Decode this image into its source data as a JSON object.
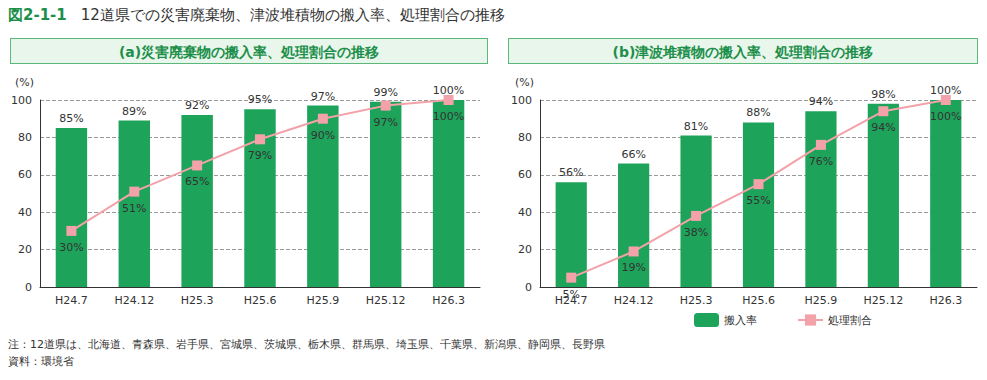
{
  "figure_number": "図2-1-1",
  "title": "12道県での災害廃棄物、津波堆積物の搬入率、処理割合の推移",
  "notes": [
    "注：12道県は、北海道、青森県、岩手県、宮城県、茨城県、栃木県、群馬県、埼玉県、千葉県、新潟県、静岡県、長野県",
    "資料：環境省"
  ],
  "chart_data": [
    {
      "type": "bar",
      "title": "(a)災害廃棄物の搬入率、処理割合の推移",
      "y_label": "(%)",
      "categories": [
        "H24.7",
        "H24.12",
        "H25.3",
        "H25.6",
        "H25.9",
        "H25.12",
        "H26.3"
      ],
      "series": [
        {
          "name": "搬入率",
          "type": "bar",
          "color": "#1ea35a",
          "values": [
            85,
            89,
            92,
            95,
            97,
            99,
            100
          ],
          "value_labels": [
            "85%",
            "89%",
            "92%",
            "95%",
            "97%",
            "99%",
            "100%"
          ]
        },
        {
          "name": "処理割合",
          "type": "line",
          "color": "#f2a2a8",
          "marker": "square",
          "values": [
            30,
            51,
            65,
            79,
            90,
            97,
            100
          ],
          "value_labels": [
            "30%",
            "51%",
            "65%",
            "79%",
            "90%",
            "97%",
            "100%"
          ]
        }
      ],
      "ylim": [
        0,
        100
      ],
      "yticks": [
        0,
        20,
        40,
        60,
        80,
        100
      ],
      "grid": true,
      "data_labels": true
    },
    {
      "type": "bar",
      "title": "(b)津波堆積物の搬入率、処理割合の推移",
      "y_label": "(%)",
      "categories": [
        "H24.7",
        "H24.12",
        "H25.3",
        "H25.6",
        "H25.9",
        "H25.12",
        "H26.3"
      ],
      "series": [
        {
          "name": "搬入率",
          "type": "bar",
          "color": "#1ea35a",
          "values": [
            56,
            66,
            81,
            88,
            94,
            98,
            100
          ],
          "value_labels": [
            "56%",
            "66%",
            "81%",
            "88%",
            "94%",
            "98%",
            "100%"
          ]
        },
        {
          "name": "処理割合",
          "type": "line",
          "color": "#f2a2a8",
          "marker": "square",
          "values": [
            5,
            19,
            38,
            55,
            76,
            94,
            100
          ],
          "value_labels": [
            "5%",
            "19%",
            "38%",
            "55%",
            "76%",
            "94%",
            "100%"
          ]
        }
      ],
      "ylim": [
        0,
        100
      ],
      "yticks": [
        0,
        20,
        40,
        60,
        80,
        100
      ],
      "grid": true,
      "data_labels": true,
      "legend": "bottom-right"
    }
  ]
}
